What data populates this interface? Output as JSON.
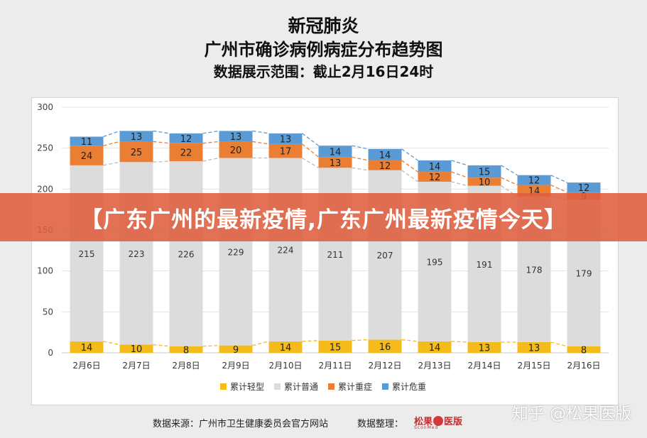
{
  "header": {
    "title_line1": "新冠肺炎",
    "title_line2": "广州市确诊病例病症分布趋势图",
    "title_line3": "数据展示范围：截止2月16日24时"
  },
  "banner": {
    "text": "【广东广州的最新疫情,广东广州最新疫情今天】"
  },
  "footer": {
    "source": "数据来源：广州市卫生健康委员会官方网站",
    "organizer": "数据整理：",
    "logo_text_left": "松果",
    "logo_text_right": "医版",
    "logo_sub": "SconMed"
  },
  "watermark": {
    "text": "知乎 @松果医版"
  },
  "chart_data": {
    "type": "bar",
    "stacked": true,
    "categories": [
      "2月6日",
      "2月7日",
      "2月8日",
      "2月9日",
      "2月10日",
      "2月11日",
      "2月12日",
      "2月13日",
      "2月14日",
      "2月15日",
      "2月16日"
    ],
    "series": [
      {
        "name": "累计轻型",
        "color": "#f4bb1b",
        "values": [
          14,
          10,
          8,
          9,
          14,
          15,
          16,
          14,
          13,
          13,
          8
        ]
      },
      {
        "name": "累计普通",
        "color": "#dcdcdc",
        "values": [
          215,
          223,
          226,
          229,
          224,
          211,
          207,
          195,
          191,
          178,
          179
        ]
      },
      {
        "name": "累计重症",
        "color": "#ea7f34",
        "values": [
          24,
          25,
          22,
          20,
          17,
          13,
          12,
          12,
          10,
          14,
          9
        ]
      },
      {
        "name": "累计危重",
        "color": "#5b9bd5",
        "values": [
          11,
          13,
          12,
          13,
          13,
          14,
          14,
          14,
          15,
          12,
          12
        ]
      }
    ],
    "ylim": [
      0,
      300
    ],
    "yticks": [
      0,
      50,
      100,
      150,
      200,
      250,
      300
    ],
    "grid": true,
    "legend_position": "bottom",
    "connector_lines": "dashed"
  }
}
